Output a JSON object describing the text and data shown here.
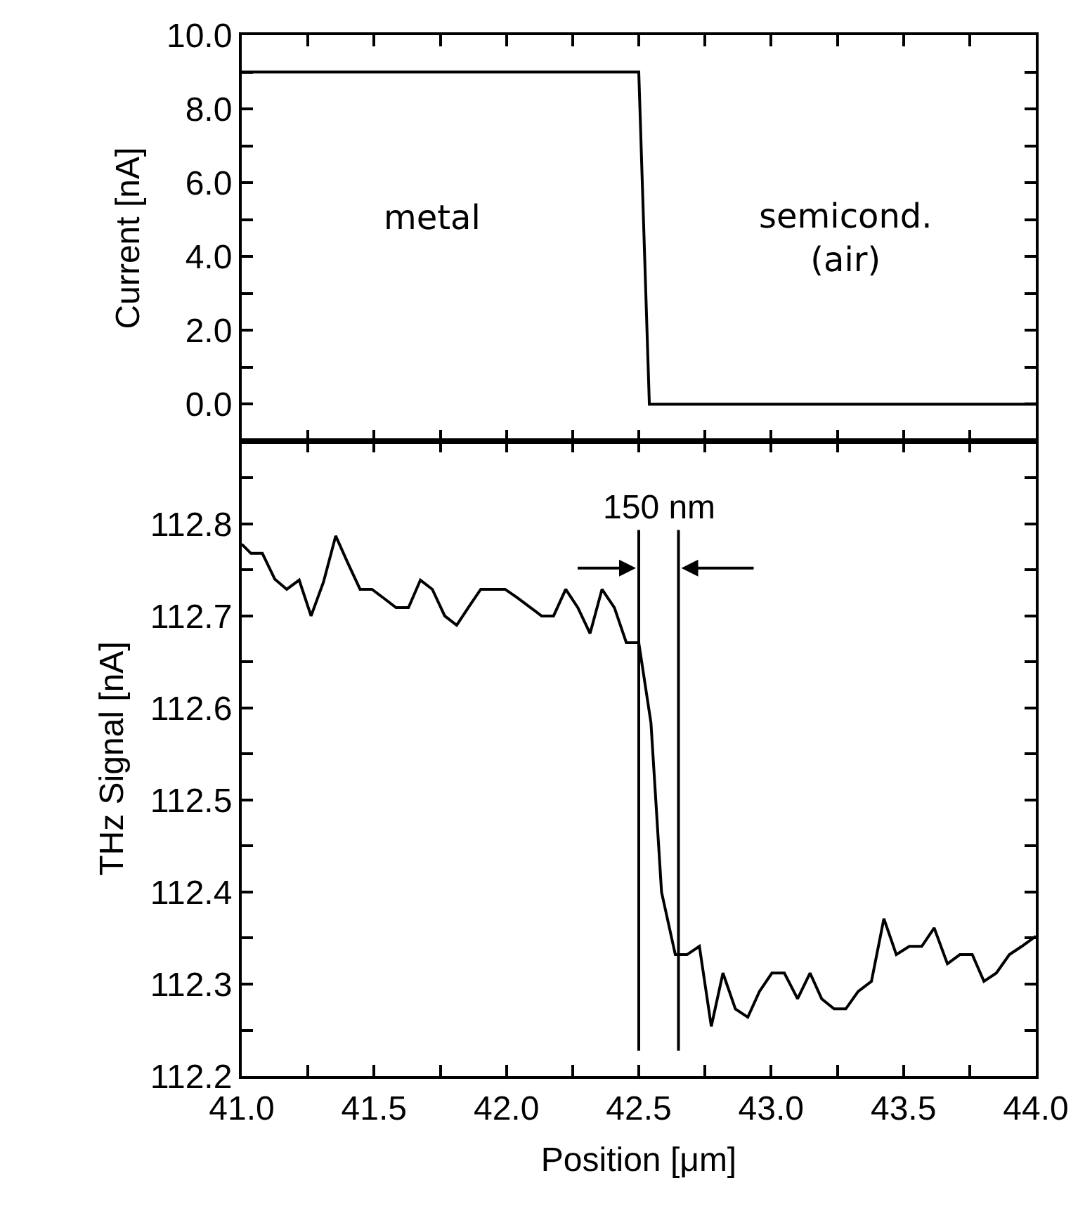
{
  "chart_data": [
    {
      "type": "line",
      "ylabel": "Current [nA]",
      "tick_labels": "y",
      "marker": "none",
      "line_style": "solid",
      "x": [
        41.0,
        42.5,
        42.54,
        44.0
      ],
      "series": [
        {
          "color": "#000000",
          "values": [
            9,
            9,
            0,
            0
          ]
        }
      ],
      "xlim": [
        41.0,
        44.0
      ],
      "xticks": [
        41.0,
        {
          "value": 41.25,
          "label": null
        },
        41.5,
        {
          "value": 41.75,
          "label": null
        },
        42.0,
        {
          "value": 42.25,
          "label": null
        },
        42.5,
        {
          "value": 42.75,
          "label": null
        },
        43.0,
        {
          "value": 43.25,
          "label": null
        },
        43.5,
        {
          "value": 43.75,
          "label": null
        },
        44.0
      ],
      "ylim": [
        -1,
        10
      ],
      "yticks": [
        {
          "value": 0,
          "label": "0.0"
        },
        {
          "value": 1,
          "label": null
        },
        {
          "value": 2,
          "label": "2.0"
        },
        {
          "value": 3,
          "label": null
        },
        {
          "value": 4,
          "label": "4.0"
        },
        {
          "value": 5,
          "label": null
        },
        {
          "value": 6,
          "label": "6.0"
        },
        {
          "value": 7,
          "label": null
        },
        {
          "value": 8,
          "label": "8.0"
        },
        {
          "value": 9,
          "label": null
        },
        {
          "value": 10,
          "label": "10.0"
        }
      ],
      "annotations": [
        "metal",
        "semicond.\n(air)"
      ]
    },
    {
      "type": "line",
      "xlabel": "Position [μm]",
      "ylabel": "THz Signal [nA]",
      "marker": "none",
      "line_style": "solid",
      "x": [
        41.0,
        41.035,
        41.078,
        41.125,
        41.17,
        41.217,
        41.262,
        41.309,
        41.355,
        41.4,
        41.447,
        41.492,
        41.538,
        41.583,
        41.63,
        41.675,
        41.72,
        41.767,
        41.812,
        41.858,
        41.903,
        41.95,
        41.995,
        42.04,
        42.087,
        42.133,
        42.178,
        42.224,
        42.27,
        42.316,
        42.361,
        42.408,
        42.453,
        42.5,
        42.546,
        42.586,
        42.638,
        42.682,
        42.729,
        42.774,
        42.818,
        42.865,
        42.912,
        42.956,
        43.003,
        43.05,
        43.1,
        43.147,
        43.191,
        43.238,
        43.282,
        43.329,
        43.379,
        43.426,
        43.473,
        43.522,
        43.569,
        43.616,
        43.666,
        43.713,
        43.76,
        43.804,
        43.851,
        43.9,
        43.947,
        44.0
      ],
      "series": [
        {
          "color": "#000000",
          "values": [
            112.778,
            112.768,
            112.768,
            112.74,
            112.729,
            112.739,
            112.7,
            112.737,
            112.787,
            112.758,
            112.729,
            112.729,
            112.719,
            112.709,
            112.709,
            112.739,
            112.729,
            112.7,
            112.69,
            112.71,
            112.729,
            112.729,
            112.729,
            112.72,
            112.71,
            112.7,
            112.7,
            112.729,
            112.709,
            112.681,
            112.729,
            112.709,
            112.671,
            112.671,
            112.584,
            112.4,
            112.332,
            112.332,
            112.341,
            112.254,
            112.312,
            112.273,
            112.264,
            112.292,
            112.312,
            112.312,
            112.284,
            112.312,
            112.284,
            112.273,
            112.273,
            112.292,
            112.303,
            112.371,
            112.332,
            112.341,
            112.341,
            112.361,
            112.322,
            112.332,
            112.332,
            112.303,
            112.312,
            112.332,
            112.341,
            112.352
          ]
        }
      ],
      "xlim": [
        41.0,
        44.0
      ],
      "xticks": [
        {
          "value": 41.0,
          "label": "41.0"
        },
        {
          "value": 41.25,
          "label": null
        },
        41.5,
        {
          "value": 41.75,
          "label": null
        },
        {
          "value": 42.0,
          "label": "42.0"
        },
        {
          "value": 42.25,
          "label": null
        },
        42.5,
        {
          "value": 42.75,
          "label": null
        },
        {
          "value": 43.0,
          "label": "43.0"
        },
        {
          "value": 43.25,
          "label": null
        },
        43.5,
        {
          "value": 43.75,
          "label": null
        },
        {
          "value": 44.0,
          "label": "44.0"
        }
      ],
      "ylim": [
        112.2,
        112.89
      ],
      "yticks": [
        {
          "value": 112.2,
          "label": "112.2"
        },
        {
          "value": 112.25,
          "label": null
        },
        {
          "value": 112.3,
          "label": "112.3"
        },
        {
          "value": 112.35,
          "label": null
        },
        {
          "value": 112.4,
          "label": "112.4"
        },
        {
          "value": 112.45,
          "label": null
        },
        {
          "value": 112.5,
          "label": "112.5"
        },
        {
          "value": 112.55,
          "label": null
        },
        {
          "value": 112.6,
          "label": "112.6"
        },
        {
          "value": 112.65,
          "label": null
        },
        {
          "value": 112.7,
          "label": "112.7"
        },
        {
          "value": 112.75,
          "label": null
        },
        {
          "value": 112.8,
          "label": "112.8"
        },
        {
          "value": 112.85,
          "label": null
        }
      ],
      "ref_lines": [
        {
          "axis": "x",
          "value": 42.5,
          "label": null,
          "color": "#000000"
        },
        {
          "axis": "x",
          "value": 42.65,
          "label": null,
          "color": "#000000"
        }
      ],
      "annotations": [
        "150 nm"
      ]
    }
  ]
}
